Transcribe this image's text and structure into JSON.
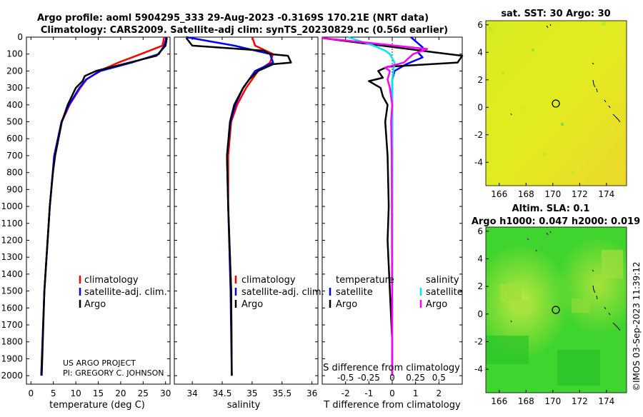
{
  "header": {
    "line1": "Argo profile: aoml 5904295_333 29-Aug-2023 -0.3169S 170.21E (NRT data)",
    "line2": "Climatology: CARS2009. Satellite-adj clim: synTS_20230829.nc (0.56d earlier)"
  },
  "credit": {
    "project": "US ARGO PROJECT",
    "pi": "PI: GREGORY C. JOHNSON",
    "stamp": "©IMOS 03-Sep-2023 11:39:12"
  },
  "colors": {
    "climatology": "#ff0000",
    "satellite": "#0000ff",
    "argo": "#000000",
    "sat_salinity": "#00e5ee",
    "argo_salinity": "#ff00ff"
  },
  "chart_data": [
    {
      "id": "temperature",
      "type": "line",
      "xlabel": "temperature (deg C)",
      "xlim": [
        -1,
        31
      ],
      "xticks": [
        0,
        5,
        10,
        15,
        20,
        25,
        30
      ],
      "ylim": [
        0,
        2050
      ],
      "yticks": [
        0,
        100,
        200,
        300,
        400,
        500,
        600,
        700,
        800,
        900,
        1000,
        1100,
        1200,
        1300,
        1400,
        1500,
        1600,
        1700,
        1800,
        1900,
        2000
      ],
      "legend": [
        "climatology",
        "satellite-adj. clim.",
        "Argo"
      ],
      "series": [
        {
          "name": "climatology",
          "depth": [
            0,
            50,
            100,
            150,
            200,
            250,
            300,
            400,
            500,
            700,
            1000,
            1500,
            2000
          ],
          "values": [
            29.7,
            29.3,
            24.5,
            19.5,
            15.2,
            12.4,
            11.0,
            8.6,
            6.9,
            5.2,
            4.2,
            3.0,
            2.3
          ]
        },
        {
          "name": "satellite-adj. clim.",
          "depth": [
            0,
            50,
            100,
            150,
            200,
            250,
            300,
            400,
            500,
            700,
            1000,
            1500,
            2000
          ],
          "values": [
            30.2,
            29.7,
            28.5,
            22.5,
            15.5,
            12.3,
            10.8,
            8.5,
            6.8,
            5.2,
            4.2,
            3.0,
            2.3
          ]
        },
        {
          "name": "Argo",
          "depth": [
            5,
            50,
            110,
            150,
            200,
            230,
            260,
            300,
            400,
            500,
            700,
            800,
            1000,
            1500,
            2000
          ],
          "values": [
            30.3,
            30.0,
            28.0,
            22.0,
            14.5,
            12.0,
            11.5,
            10.0,
            8.2,
            6.9,
            5.4,
            4.9,
            4.2,
            3.0,
            2.4
          ]
        }
      ]
    },
    {
      "id": "salinity",
      "type": "line",
      "xlabel": "salinity",
      "xlim": [
        33.7,
        36.1
      ],
      "xticks": [
        34,
        34.5,
        35,
        35.5,
        36
      ],
      "ylim": [
        0,
        2050
      ],
      "legend": [
        "climatology",
        "satellite-adj. clim.",
        "Argo"
      ],
      "series": [
        {
          "name": "climatology",
          "depth": [
            0,
            50,
            100,
            150,
            200,
            250,
            300,
            400,
            500,
            700,
            1000,
            1500,
            2000
          ],
          "values": [
            35.0,
            35.05,
            35.35,
            35.3,
            35.1,
            35.0,
            34.9,
            34.75,
            34.65,
            34.6,
            34.6,
            34.65,
            34.66
          ]
        },
        {
          "name": "satellite-adj. clim.",
          "depth": [
            0,
            50,
            100,
            150,
            200,
            250,
            300,
            400,
            500,
            700,
            1000,
            1500,
            2000
          ],
          "values": [
            33.9,
            34.7,
            35.3,
            35.35,
            35.05,
            34.95,
            34.85,
            34.72,
            34.64,
            34.58,
            34.6,
            34.64,
            34.66
          ]
        },
        {
          "name": "Argo",
          "depth": [
            5,
            50,
            80,
            100,
            110,
            150,
            160,
            200,
            250,
            300,
            400,
            500,
            700,
            1000,
            1500,
            2000
          ],
          "values": [
            33.9,
            34.0,
            35.2,
            35.3,
            35.6,
            35.65,
            35.35,
            35.1,
            34.95,
            34.85,
            34.7,
            34.63,
            34.58,
            34.6,
            34.65,
            34.66
          ]
        }
      ]
    },
    {
      "id": "differences",
      "type": "line",
      "xlabel": "T difference from climatology",
      "xlabel_top": "S difference from climatology",
      "xlim": [
        -3,
        3
      ],
      "xticks": [
        -2,
        -1,
        0,
        1,
        2
      ],
      "sticks": [
        -0.5,
        -0.25,
        0,
        0.25,
        0.5
      ],
      "stick_labels": [
        "-0.5",
        "-0.25",
        "0",
        "0.25",
        "0.5"
      ],
      "ylim": [
        0,
        2050
      ],
      "legend_headers": [
        "temperature",
        "salinity"
      ],
      "legend": [
        "satellite",
        "Argo",
        "satellite",
        "Argo"
      ],
      "series": [
        {
          "name": "temperature satellite",
          "depth": [
            0,
            60,
            90,
            120,
            160,
            200,
            250,
            300,
            400,
            600,
            1000,
            2000
          ],
          "values": [
            0.8,
            1.3,
            1.1,
            1.3,
            0.6,
            0.1,
            0.0,
            0.0,
            0.0,
            0.0,
            0.0,
            0.0
          ]
        },
        {
          "name": "temperature Argo",
          "depth": [
            5,
            90,
            110,
            150,
            175,
            200,
            240,
            260,
            300,
            350,
            400,
            500,
            700,
            1000,
            1200,
            1500,
            1800,
            2000
          ],
          "values": [
            -3.0,
            1.8,
            3.0,
            2.8,
            -0.2,
            -0.6,
            -0.4,
            -1.0,
            -0.5,
            -0.4,
            -0.2,
            -0.3,
            -0.2,
            -0.15,
            -0.2,
            -0.1,
            0.0,
            0.0
          ]
        },
        {
          "name": "salinity satellite",
          "depth": [
            0,
            50,
            80,
            100,
            150,
            200,
            250,
            300,
            500,
            2000
          ],
          "values": [
            -1.9,
            -0.8,
            -0.3,
            -0.1,
            0.1,
            0.05,
            0.0,
            0.0,
            0.0,
            0.0
          ]
        },
        {
          "name": "salinity Argo",
          "depth": [
            5,
            70,
            100,
            150,
            180,
            200,
            250,
            300,
            400,
            500,
            700,
            2000
          ],
          "values": [
            -3.0,
            1.5,
            0.9,
            0.5,
            -0.3,
            -0.1,
            -0.2,
            -0.1,
            0.0,
            -0.05,
            -0.02,
            0.0
          ]
        }
      ]
    },
    {
      "id": "sst-map",
      "type": "heatmap",
      "title": "sat. SST: 30 Argo: 30",
      "xlim": [
        165,
        175.5
      ],
      "xticks": [
        166,
        168,
        170,
        172,
        174
      ],
      "ylim": [
        -5.7,
        6.3
      ],
      "yticks": [
        -4,
        -2,
        0,
        2,
        4,
        6
      ],
      "marker": {
        "lon": 170.21,
        "lat": -0.3169
      }
    },
    {
      "id": "sla-map",
      "type": "heatmap",
      "title": "Altim. SLA: 0.1",
      "subtitle": "Argo h1000: 0.047 h2000: 0.019",
      "xlim": [
        165,
        175.5
      ],
      "xticks": [
        166,
        168,
        170,
        172,
        174
      ],
      "ylim": [
        -5.7,
        6.3
      ],
      "yticks": [
        -4,
        -2,
        0,
        2,
        4,
        6
      ],
      "marker": {
        "lon": 170.21,
        "lat": -0.3169
      }
    }
  ]
}
